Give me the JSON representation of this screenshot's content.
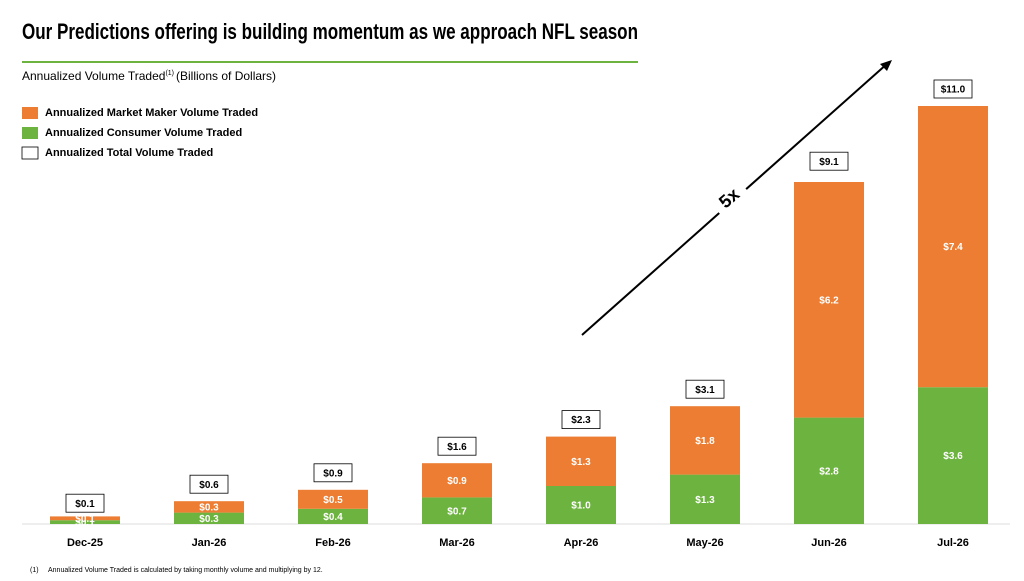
{
  "chart_data": {
    "type": "stacked-bar",
    "title": "Our Predictions offering is building momentum as we approach NFL season",
    "subtitle": "Annualized Volume Traded",
    "subtitle_note": "(1)",
    "subtitle_units": "(Billions of Dollars)",
    "categories": [
      "Dec-25",
      "Jan-26",
      "Feb-26",
      "Mar-26",
      "Apr-26",
      "May-26",
      "Jun-26",
      "Jul-26"
    ],
    "series": [
      {
        "name": "Annualized Consumer Volume Traded",
        "color": "#6db33f",
        "values": [
          0.1,
          0.3,
          0.4,
          0.7,
          1.0,
          1.3,
          2.8,
          3.6
        ],
        "value_labels": [
          "$0.1",
          "$0.3",
          "$0.4",
          "$0.7",
          "$1.0",
          "$1.3",
          "$2.8",
          "$3.6"
        ]
      },
      {
        "name": "Annualized Market Maker Volume Traded",
        "color": "#ec7d32",
        "values": [
          0.1,
          0.3,
          0.5,
          0.9,
          1.3,
          1.8,
          6.2,
          7.4
        ],
        "value_labels": [
          "$0.1",
          "$0.3",
          "$0.5",
          "$0.9",
          "$1.3",
          "$1.8",
          "$6.2",
          "$7.4"
        ]
      }
    ],
    "total": {
      "name": "Annualized Total Volume Traded",
      "color": "#ffffff",
      "values": [
        0.1,
        0.6,
        0.9,
        1.6,
        2.3,
        3.1,
        9.1,
        11.0
      ],
      "value_labels": [
        "$0.1",
        "$0.6",
        "$0.9",
        "$1.6",
        "$2.3",
        "$3.1",
        "$9.1",
        "$11.0"
      ]
    },
    "annotation": "5x",
    "footnote_marker": "(1)",
    "footnote": "Annualized Volume Traded is calculated by taking monthly volume and multiplying by 12."
  }
}
